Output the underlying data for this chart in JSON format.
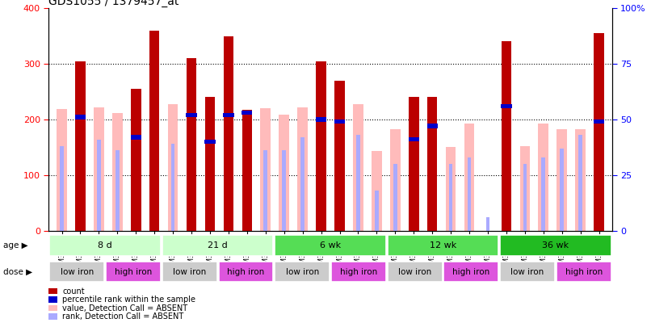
{
  "title": "GDS1055 / 1379457_at",
  "samples": [
    "GSM33580",
    "GSM33581",
    "GSM33582",
    "GSM33577",
    "GSM33578",
    "GSM33579",
    "GSM33574",
    "GSM33575",
    "GSM33576",
    "GSM33571",
    "GSM33572",
    "GSM33573",
    "GSM33568",
    "GSM33569",
    "GSM33570",
    "GSM33565",
    "GSM33566",
    "GSM33567",
    "GSM33562",
    "GSM33563",
    "GSM33564",
    "GSM33559",
    "GSM33560",
    "GSM33561",
    "GSM33555",
    "GSM33556",
    "GSM33557",
    "GSM33551",
    "GSM33552",
    "GSM33553"
  ],
  "count": [
    0,
    305,
    0,
    0,
    255,
    360,
    0,
    310,
    240,
    350,
    217,
    0,
    0,
    0,
    305,
    270,
    0,
    0,
    0,
    240,
    240,
    0,
    0,
    0,
    340,
    0,
    0,
    0,
    0,
    355
  ],
  "value_absent": [
    218,
    0,
    222,
    212,
    0,
    0,
    228,
    0,
    0,
    0,
    0,
    220,
    208,
    222,
    0,
    0,
    228,
    143,
    183,
    0,
    0,
    150,
    192,
    0,
    0,
    152,
    192,
    183,
    183,
    0
  ],
  "percentile_rank_pct": [
    0,
    51,
    0,
    0,
    42,
    0,
    0,
    52,
    40,
    52,
    53,
    0,
    0,
    0,
    50,
    49,
    0,
    0,
    0,
    41,
    47,
    0,
    0,
    0,
    56,
    0,
    0,
    0,
    0,
    49
  ],
  "rank_absent_pct": [
    38,
    0,
    41,
    36,
    0,
    0,
    39,
    0,
    0,
    0,
    0,
    36,
    36,
    42,
    0,
    0,
    43,
    18,
    30,
    0,
    0,
    30,
    33,
    6,
    0,
    30,
    33,
    37,
    43,
    0
  ],
  "age_groups": [
    {
      "label": "8 d",
      "start": 0,
      "end": 6,
      "color": "#ccffcc"
    },
    {
      "label": "21 d",
      "start": 6,
      "end": 12,
      "color": "#ccffcc"
    },
    {
      "label": "6 wk",
      "start": 12,
      "end": 18,
      "color": "#55dd55"
    },
    {
      "label": "12 wk",
      "start": 18,
      "end": 24,
      "color": "#55dd55"
    },
    {
      "label": "36 wk",
      "start": 24,
      "end": 30,
      "color": "#22bb22"
    }
  ],
  "dose_groups": [
    {
      "label": "low iron",
      "start": 0,
      "end": 3,
      "color": "#cccccc"
    },
    {
      "label": "high iron",
      "start": 3,
      "end": 6,
      "color": "#dd55dd"
    },
    {
      "label": "low iron",
      "start": 6,
      "end": 9,
      "color": "#cccccc"
    },
    {
      "label": "high iron",
      "start": 9,
      "end": 12,
      "color": "#dd55dd"
    },
    {
      "label": "low iron",
      "start": 12,
      "end": 15,
      "color": "#cccccc"
    },
    {
      "label": "high iron",
      "start": 15,
      "end": 18,
      "color": "#dd55dd"
    },
    {
      "label": "low iron",
      "start": 18,
      "end": 21,
      "color": "#cccccc"
    },
    {
      "label": "high iron",
      "start": 21,
      "end": 24,
      "color": "#dd55dd"
    },
    {
      "label": "low iron",
      "start": 24,
      "end": 27,
      "color": "#cccccc"
    },
    {
      "label": "high iron",
      "start": 27,
      "end": 30,
      "color": "#dd55dd"
    }
  ],
  "count_color": "#bb0000",
  "value_absent_color": "#ffbbbb",
  "percentile_rank_color": "#0000cc",
  "rank_absent_color": "#aaaaff",
  "ylim_left": [
    0,
    400
  ],
  "ylim_right": [
    0,
    100
  ],
  "yticks_left": [
    0,
    100,
    200,
    300,
    400
  ],
  "yticks_right": [
    0,
    25,
    50,
    75,
    100
  ]
}
